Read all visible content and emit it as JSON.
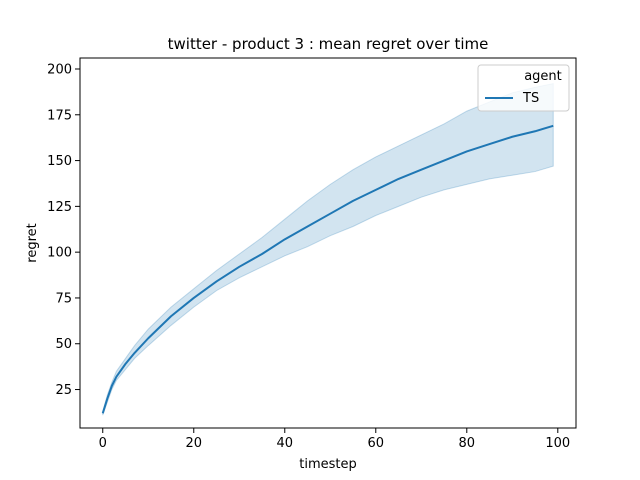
{
  "chart_data": {
    "type": "line",
    "title": "twitter - product 3 : mean regret over time",
    "xlabel": "timestep",
    "ylabel": "regret",
    "xlim": [
      -5,
      104
    ],
    "ylim": [
      4,
      206
    ],
    "xticks": [
      0,
      20,
      40,
      60,
      80,
      100
    ],
    "yticks": [
      25,
      50,
      75,
      100,
      125,
      150,
      175,
      200
    ],
    "legend": {
      "title": "agent",
      "position": "top-right"
    },
    "colors": {
      "line": "#1f77b4",
      "band": "#1f77b4"
    },
    "series": [
      {
        "name": "TS",
        "x": [
          0,
          1,
          2,
          3,
          5,
          7,
          10,
          15,
          20,
          25,
          30,
          35,
          40,
          45,
          50,
          55,
          60,
          65,
          70,
          75,
          80,
          85,
          90,
          95,
          99
        ],
        "mean": [
          12,
          20,
          27,
          32,
          39,
          45,
          53,
          65,
          75,
          84,
          92,
          99,
          107,
          114,
          121,
          128,
          134,
          140,
          145,
          150,
          155,
          159,
          163,
          166,
          169
        ],
        "upper": [
          13,
          22,
          29,
          35,
          42,
          49,
          58,
          70,
          80,
          90,
          99,
          108,
          118,
          128,
          137,
          145,
          152,
          158,
          164,
          170,
          177,
          182,
          187,
          190,
          192
        ],
        "lower": [
          11,
          18,
          25,
          30,
          36,
          42,
          49,
          60,
          70,
          79,
          86,
          92,
          98,
          103,
          109,
          114,
          120,
          125,
          130,
          134,
          137,
          140,
          142,
          144,
          147
        ]
      }
    ]
  }
}
